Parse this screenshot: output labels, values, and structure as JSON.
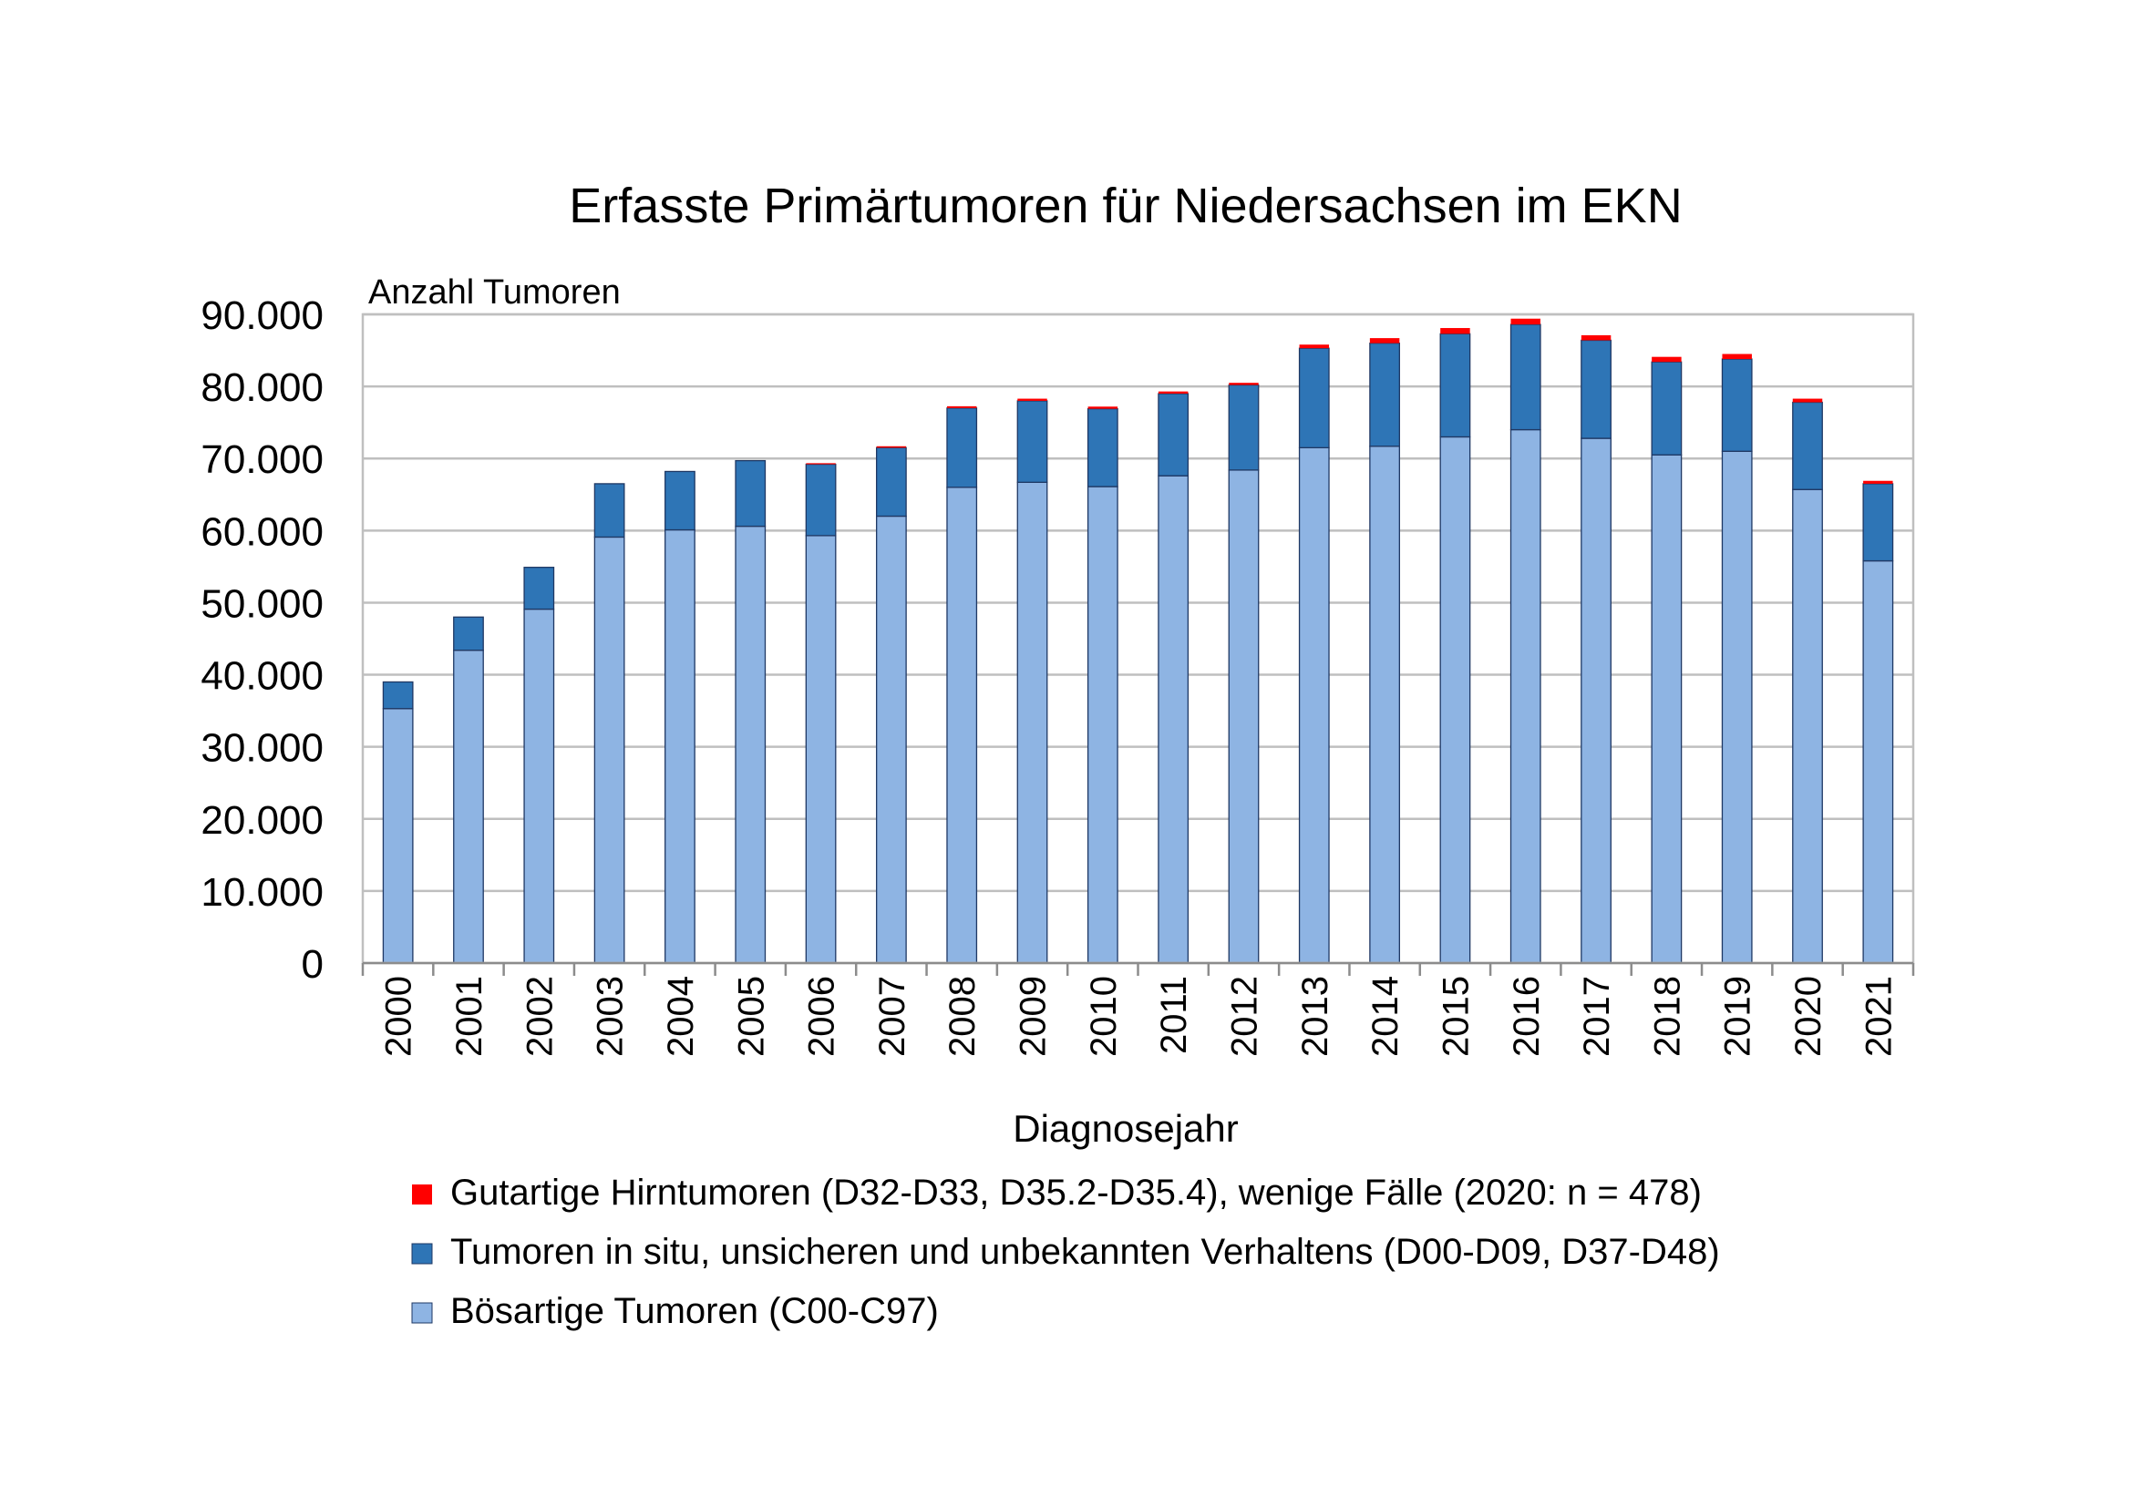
{
  "chart_data": {
    "type": "bar",
    "stacked": true,
    "title": "Erfasste Primärtumoren für Niedersachsen im EKN",
    "ylabel": "Anzahl Tumoren",
    "xlabel": "Diagnosejahr",
    "ylim": [
      0,
      90000
    ],
    "yticks": [
      0,
      10000,
      20000,
      30000,
      40000,
      50000,
      60000,
      70000,
      80000,
      90000
    ],
    "ytick_labels": [
      "0",
      "10.000",
      "20.000",
      "30.000",
      "40.000",
      "50.000",
      "60.000",
      "70.000",
      "80.000",
      "90.000"
    ],
    "grid": true,
    "legend_position": "bottom",
    "categories": [
      "2000",
      "2001",
      "2002",
      "2003",
      "2004",
      "2005",
      "2006",
      "2007",
      "2008",
      "2009",
      "2010",
      "2011",
      "2012",
      "2013",
      "2014",
      "2015",
      "2016",
      "2017",
      "2018",
      "2019",
      "2020",
      "2021"
    ],
    "series": [
      {
        "name": "Bösartige Tumoren (C00-C97)",
        "color": "#8EB4E3",
        "values": [
          35300,
          43400,
          49100,
          59100,
          60100,
          60600,
          59300,
          62000,
          66000,
          66700,
          66100,
          67600,
          68400,
          71500,
          71700,
          73000,
          74000,
          72800,
          70500,
          71000,
          65700,
          55800
        ]
      },
      {
        "name": "Tumoren in situ, unsicheren und unbekannten Verhaltens (D00-D09, D37-D48)",
        "color": "#2E75B6",
        "values": [
          3700,
          4600,
          5800,
          7400,
          8100,
          9100,
          9900,
          9500,
          11000,
          11300,
          10800,
          11400,
          11800,
          13800,
          14300,
          14300,
          14600,
          13600,
          12900,
          12800,
          12100,
          10700
        ]
      },
      {
        "name": "Gutartige Hirntumoren (D32-D33, D35.2-D35.4), wenige Fälle (2020: n = 478)",
        "color": "#FF0000",
        "values": [
          0,
          0,
          0,
          0,
          0,
          0,
          150,
          200,
          250,
          300,
          300,
          300,
          300,
          500,
          700,
          800,
          800,
          700,
          700,
          700,
          500,
          400
        ]
      }
    ]
  }
}
